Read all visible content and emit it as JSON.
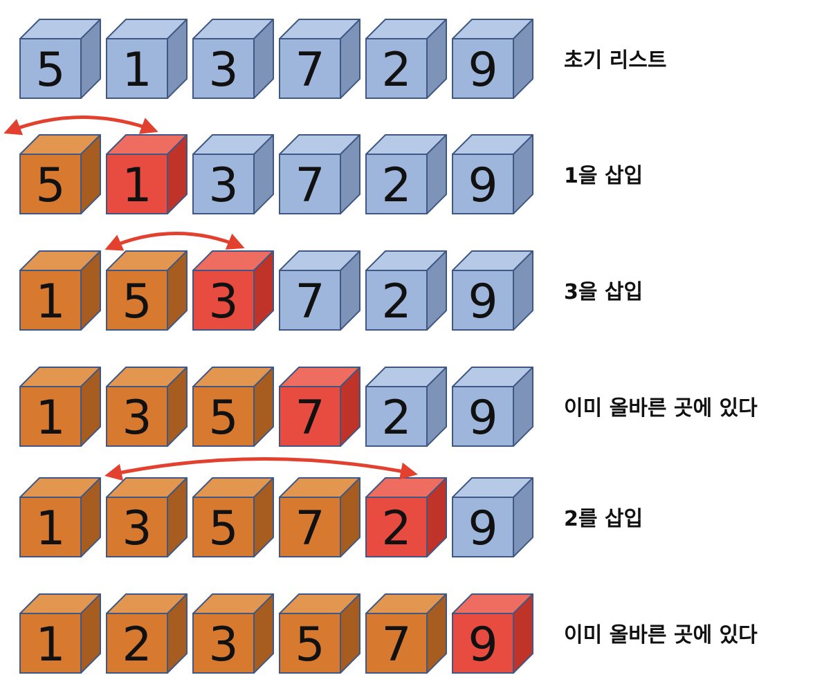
{
  "colors": {
    "sorted": {
      "front": "#d77a30",
      "top": "#e3964f",
      "side": "#a75d20"
    },
    "current": {
      "front": "#e84b40",
      "top": "#ee6d60",
      "side": "#bf3329"
    },
    "unsorted": {
      "front": "#9eb6dc",
      "top": "#b6c9e7",
      "side": "#7d93b8"
    },
    "edge": "#3f5883",
    "arrow": "#e2412f"
  },
  "rows": [
    {
      "label": "초기 리스트",
      "values": [
        5,
        1,
        3,
        7,
        2,
        9
      ],
      "states": [
        "unsorted",
        "unsorted",
        "unsorted",
        "unsorted",
        "unsorted",
        "unsorted"
      ],
      "arrow": null
    },
    {
      "label": "1을 삽입",
      "values": [
        5,
        1,
        3,
        7,
        2,
        9
      ],
      "states": [
        "sorted",
        "current",
        "unsorted",
        "unsorted",
        "unsorted",
        "unsorted"
      ],
      "arrow": {
        "from": 1,
        "to": 0
      }
    },
    {
      "label": "3을 삽입",
      "values": [
        1,
        5,
        3,
        7,
        2,
        9
      ],
      "states": [
        "sorted",
        "sorted",
        "current",
        "unsorted",
        "unsorted",
        "unsorted"
      ],
      "arrow": {
        "from": 2,
        "to": 1
      }
    },
    {
      "label": "이미 올바른 곳에 있다",
      "values": [
        1,
        3,
        5,
        7,
        2,
        9
      ],
      "states": [
        "sorted",
        "sorted",
        "sorted",
        "current",
        "unsorted",
        "unsorted"
      ],
      "arrow": null
    },
    {
      "label": "2를 삽입",
      "values": [
        1,
        3,
        5,
        7,
        2,
        9
      ],
      "states": [
        "sorted",
        "sorted",
        "sorted",
        "sorted",
        "current",
        "unsorted"
      ],
      "arrow": {
        "from": 4,
        "to": 1
      }
    },
    {
      "label": "이미 올바른 곳에 있다",
      "values": [
        1,
        2,
        3,
        5,
        7,
        9
      ],
      "states": [
        "sorted",
        "sorted",
        "sorted",
        "sorted",
        "sorted",
        "current"
      ],
      "arrow": null
    }
  ]
}
